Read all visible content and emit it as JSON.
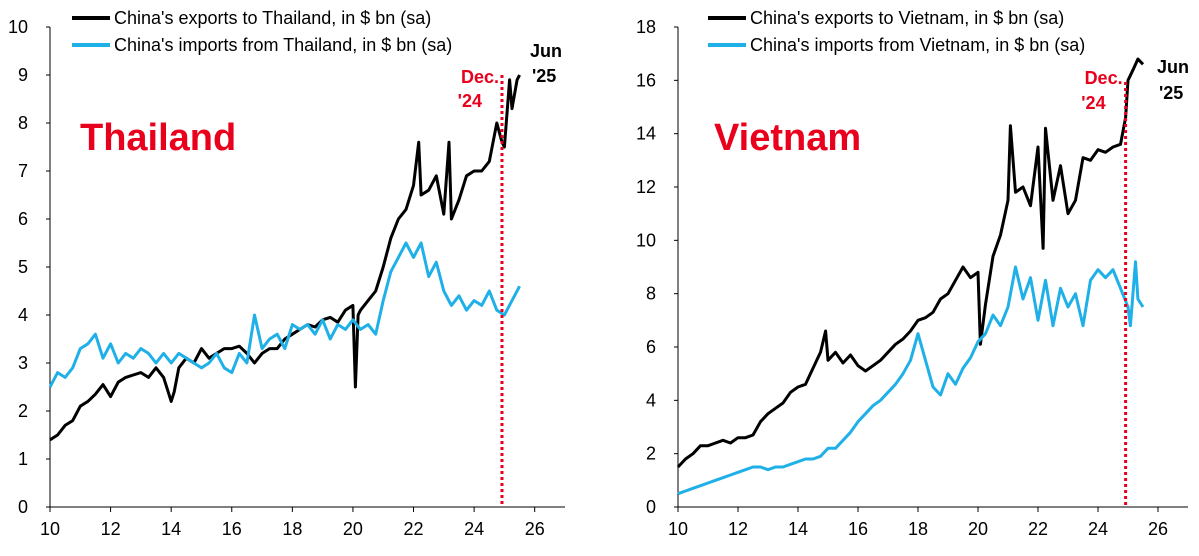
{
  "colors": {
    "exports": "#000000",
    "imports": "#1fb0e8",
    "marker": "#e8001c",
    "title": "#e8001c"
  },
  "chart_data": [
    {
      "type": "line",
      "title": "Thailand",
      "xlabel": "",
      "ylabel": "",
      "xlim": [
        10,
        27
      ],
      "ylim": [
        0,
        10
      ],
      "x_ticks": [
        "10",
        "12",
        "14",
        "16",
        "18",
        "20",
        "22",
        "24",
        "26"
      ],
      "y_ticks": [
        "0",
        "1",
        "2",
        "3",
        "4",
        "5",
        "6",
        "7",
        "8",
        "9",
        "10"
      ],
      "grid": false,
      "legend_position": "top-left",
      "vline": {
        "x": 24.92,
        "label_top": "Dec.",
        "label_bottom": "'24"
      },
      "end_label": {
        "top": "Jun",
        "bottom": "'25"
      },
      "series": [
        {
          "name": "China's exports to Thailand, in $ bn (sa)",
          "color_key": "exports",
          "x": [
            10.0,
            10.25,
            10.5,
            10.75,
            11.0,
            11.25,
            11.5,
            11.75,
            12.0,
            12.25,
            12.5,
            12.75,
            13.0,
            13.25,
            13.5,
            13.75,
            14.0,
            14.1,
            14.25,
            14.5,
            14.75,
            15.0,
            15.25,
            15.5,
            15.75,
            16.0,
            16.25,
            16.5,
            16.75,
            17.0,
            17.25,
            17.5,
            17.75,
            18.0,
            18.25,
            18.5,
            18.75,
            19.0,
            19.25,
            19.5,
            19.75,
            20.0,
            20.08,
            20.17,
            20.25,
            20.5,
            20.75,
            21.0,
            21.25,
            21.5,
            21.75,
            22.0,
            22.17,
            22.25,
            22.5,
            22.75,
            23.0,
            23.17,
            23.25,
            23.5,
            23.75,
            24.0,
            24.25,
            24.5,
            24.75,
            24.92,
            25.0,
            25.17,
            25.25,
            25.42,
            25.5
          ],
          "y": [
            1.4,
            1.5,
            1.7,
            1.8,
            2.1,
            2.2,
            2.35,
            2.55,
            2.3,
            2.6,
            2.7,
            2.75,
            2.8,
            2.7,
            2.9,
            2.7,
            2.2,
            2.4,
            2.9,
            3.1,
            3.0,
            3.3,
            3.1,
            3.2,
            3.3,
            3.3,
            3.35,
            3.2,
            3.0,
            3.2,
            3.3,
            3.3,
            3.5,
            3.6,
            3.7,
            3.8,
            3.75,
            3.9,
            3.95,
            3.85,
            4.1,
            4.2,
            2.5,
            4.0,
            4.1,
            4.3,
            4.5,
            5.0,
            5.6,
            6.0,
            6.2,
            6.7,
            7.6,
            6.5,
            6.6,
            6.9,
            6.1,
            7.6,
            6.0,
            6.4,
            6.9,
            7.0,
            7.0,
            7.2,
            8.0,
            7.6,
            7.5,
            8.9,
            8.3,
            8.9,
            9.0
          ]
        },
        {
          "name": "China's imports from Thailand, in $ bn (sa)",
          "color_key": "imports",
          "x": [
            10.0,
            10.25,
            10.5,
            10.75,
            11.0,
            11.25,
            11.5,
            11.75,
            12.0,
            12.25,
            12.5,
            12.75,
            13.0,
            13.25,
            13.5,
            13.75,
            14.0,
            14.25,
            14.5,
            14.75,
            15.0,
            15.25,
            15.5,
            15.75,
            16.0,
            16.25,
            16.5,
            16.75,
            17.0,
            17.25,
            17.5,
            17.75,
            18.0,
            18.25,
            18.5,
            18.75,
            19.0,
            19.25,
            19.5,
            19.75,
            20.0,
            20.25,
            20.5,
            20.75,
            21.0,
            21.25,
            21.5,
            21.75,
            22.0,
            22.25,
            22.5,
            22.75,
            23.0,
            23.25,
            23.5,
            23.75,
            24.0,
            24.25,
            24.5,
            24.75,
            25.0,
            25.25,
            25.5
          ],
          "y": [
            2.5,
            2.8,
            2.7,
            2.9,
            3.3,
            3.4,
            3.6,
            3.1,
            3.4,
            3.0,
            3.2,
            3.1,
            3.3,
            3.2,
            3.0,
            3.2,
            3.0,
            3.2,
            3.1,
            3.0,
            2.9,
            3.0,
            3.2,
            2.9,
            2.8,
            3.2,
            3.0,
            4.0,
            3.3,
            3.5,
            3.6,
            3.3,
            3.8,
            3.7,
            3.8,
            3.6,
            3.9,
            3.5,
            3.8,
            3.7,
            3.9,
            3.7,
            3.8,
            3.6,
            4.3,
            4.9,
            5.2,
            5.5,
            5.2,
            5.5,
            4.8,
            5.1,
            4.5,
            4.2,
            4.4,
            4.1,
            4.3,
            4.2,
            4.5,
            4.1,
            4.0,
            4.3,
            4.6
          ]
        }
      ]
    },
    {
      "type": "line",
      "title": "Vietnam",
      "xlabel": "",
      "ylabel": "",
      "xlim": [
        10,
        27
      ],
      "ylim": [
        0,
        18
      ],
      "x_ticks": [
        "10",
        "12",
        "14",
        "16",
        "18",
        "20",
        "22",
        "24",
        "26"
      ],
      "y_ticks": [
        "0",
        "2",
        "4",
        "6",
        "8",
        "10",
        "12",
        "14",
        "16",
        "18"
      ],
      "grid": false,
      "legend_position": "top-left",
      "vline": {
        "x": 24.92,
        "label_top": "Dec.",
        "label_bottom": "'24"
      },
      "end_label": {
        "top": "Jun",
        "bottom": "'25"
      },
      "series": [
        {
          "name": "China's exports to Vietnam, in $ bn (sa)",
          "color_key": "exports",
          "x": [
            10.0,
            10.25,
            10.5,
            10.75,
            11.0,
            11.25,
            11.5,
            11.75,
            12.0,
            12.25,
            12.5,
            12.75,
            13.0,
            13.25,
            13.5,
            13.75,
            14.0,
            14.25,
            14.5,
            14.75,
            14.92,
            15.0,
            15.25,
            15.5,
            15.75,
            16.0,
            16.25,
            16.5,
            16.75,
            17.0,
            17.25,
            17.5,
            17.75,
            18.0,
            18.25,
            18.5,
            18.75,
            19.0,
            19.25,
            19.5,
            19.75,
            20.0,
            20.08,
            20.25,
            20.5,
            20.75,
            21.0,
            21.08,
            21.25,
            21.5,
            21.75,
            22.0,
            22.17,
            22.25,
            22.5,
            22.75,
            23.0,
            23.25,
            23.5,
            23.75,
            24.0,
            24.25,
            24.5,
            24.75,
            24.92,
            25.0,
            25.17,
            25.33,
            25.5
          ],
          "y": [
            1.5,
            1.8,
            2.0,
            2.3,
            2.3,
            2.4,
            2.5,
            2.4,
            2.6,
            2.6,
            2.7,
            3.2,
            3.5,
            3.7,
            3.9,
            4.3,
            4.5,
            4.6,
            5.2,
            5.8,
            6.6,
            5.5,
            5.8,
            5.4,
            5.7,
            5.3,
            5.1,
            5.3,
            5.5,
            5.8,
            6.1,
            6.3,
            6.6,
            7.0,
            7.1,
            7.3,
            7.8,
            8.0,
            8.5,
            9.0,
            8.6,
            8.8,
            6.1,
            7.6,
            9.4,
            10.2,
            11.5,
            14.3,
            11.8,
            12.0,
            11.3,
            13.5,
            9.7,
            14.2,
            11.5,
            12.8,
            11.0,
            11.5,
            13.1,
            13.0,
            13.4,
            13.3,
            13.5,
            13.6,
            14.6,
            16.0,
            16.4,
            16.8,
            16.6
          ]
        },
        {
          "name": "China's imports from Vietnam, in $ bn (sa)",
          "color_key": "imports",
          "x": [
            10.0,
            10.25,
            10.5,
            10.75,
            11.0,
            11.25,
            11.5,
            11.75,
            12.0,
            12.25,
            12.5,
            12.75,
            13.0,
            13.25,
            13.5,
            13.75,
            14.0,
            14.25,
            14.5,
            14.75,
            15.0,
            15.25,
            15.5,
            15.75,
            16.0,
            16.25,
            16.5,
            16.75,
            17.0,
            17.25,
            17.5,
            17.75,
            18.0,
            18.25,
            18.5,
            18.75,
            19.0,
            19.25,
            19.5,
            19.75,
            20.0,
            20.25,
            20.5,
            20.75,
            21.0,
            21.25,
            21.5,
            21.75,
            22.0,
            22.25,
            22.5,
            22.75,
            23.0,
            23.25,
            23.5,
            23.75,
            24.0,
            24.25,
            24.5,
            24.75,
            25.0,
            25.08,
            25.25,
            25.33,
            25.5
          ],
          "y": [
            0.5,
            0.6,
            0.7,
            0.8,
            0.9,
            1.0,
            1.1,
            1.2,
            1.3,
            1.4,
            1.5,
            1.5,
            1.4,
            1.5,
            1.5,
            1.6,
            1.7,
            1.8,
            1.8,
            1.9,
            2.2,
            2.2,
            2.5,
            2.8,
            3.2,
            3.5,
            3.8,
            4.0,
            4.3,
            4.6,
            5.0,
            5.5,
            6.5,
            5.5,
            4.5,
            4.2,
            5.0,
            4.6,
            5.2,
            5.6,
            6.2,
            6.5,
            7.2,
            6.8,
            7.5,
            9.0,
            7.8,
            8.6,
            7.0,
            8.5,
            6.8,
            8.2,
            7.5,
            8.0,
            6.8,
            8.5,
            8.9,
            8.6,
            8.9,
            8.2,
            7.5,
            6.8,
            9.2,
            7.8,
            7.5
          ]
        }
      ]
    }
  ]
}
